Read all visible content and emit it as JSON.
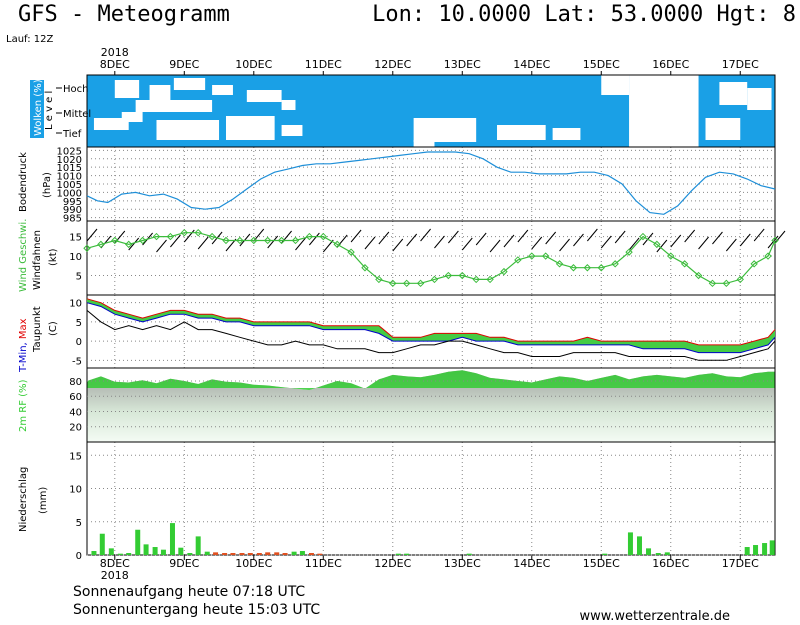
{
  "header": {
    "title": "GFS - Meteogramm",
    "coords": "Lon: 10.0000 Lat: 53.0000 Hgt: 8",
    "run": "Lauf: 12Z"
  },
  "year_top": "2018",
  "year_bottom": "2018",
  "footer": {
    "sunrise": "Sonnenaufgang heute 07:18 UTC",
    "sunset": "Sonnenuntergang heute 15:03 UTC",
    "site": "www.wetterzentrale.de"
  },
  "colors": {
    "cloud_sky": "#1aa0e6",
    "pressure_line": "#1e8fd8",
    "wind_line": "#3cbc3c",
    "tmin_label": "#0000cc",
    "tmax_label": "#e00000",
    "temp_fill": "#44cc44",
    "temp_fill_warm": "#c8e000",
    "rh_fill": "#33cc33",
    "precip_bar": "#33cc33",
    "precip_bar_red": "#e05020"
  },
  "chart_data": {
    "type": "meteogram",
    "x_dates": [
      "8DEC",
      "9DEC",
      "10DEC",
      "11DEC",
      "12DEC",
      "13DEC",
      "14DEC",
      "15DEC",
      "16DEC",
      "17DEC"
    ],
    "x_range_days": [
      7.6,
      17.5
    ],
    "panels": [
      {
        "name": "clouds",
        "ylabel_parts": [
          "Wolken",
          "(%)"
        ],
        "level_label": "Level",
        "levels": [
          "Hoch",
          "Mittel",
          "Tief"
        ]
      },
      {
        "name": "pressure",
        "ylabel": "Bodendruck",
        "unit": "(hPa)",
        "yticks": [
          985,
          990,
          995,
          1000,
          1005,
          1010,
          1015,
          1020,
          1025
        ],
        "ylim": [
          983,
          1027
        ],
        "x": [
          7.6,
          7.75,
          7.9,
          8.1,
          8.3,
          8.5,
          8.7,
          8.9,
          9.1,
          9.3,
          9.5,
          9.7,
          9.9,
          10.1,
          10.3,
          10.5,
          10.7,
          10.9,
          11.1,
          11.3,
          11.5,
          11.7,
          11.9,
          12.1,
          12.3,
          12.5,
          12.7,
          12.9,
          13.1,
          13.3,
          13.5,
          13.7,
          13.9,
          14.1,
          14.3,
          14.5,
          14.7,
          14.9,
          15.1,
          15.3,
          15.5,
          15.7,
          15.9,
          16.1,
          16.3,
          16.5,
          16.7,
          16.9,
          17.1,
          17.3,
          17.5
        ],
        "values": [
          998,
          995,
          994,
          999,
          1000,
          998,
          999,
          996,
          991,
          990,
          991,
          996,
          1002,
          1008,
          1012,
          1014,
          1016,
          1017,
          1017,
          1018,
          1019,
          1020,
          1021,
          1022,
          1023,
          1024,
          1024,
          1024,
          1023,
          1020,
          1015,
          1012,
          1012,
          1011,
          1011,
          1011,
          1012,
          1012,
          1010,
          1005,
          995,
          988,
          987,
          992,
          1001,
          1009,
          1012,
          1011,
          1008,
          1004,
          1002
        ]
      },
      {
        "name": "wind",
        "ylabel_color": "Wind Geschwi.",
        "ylabel": "Windfahnen",
        "unit": "(kt)",
        "yticks": [
          5,
          10,
          15
        ],
        "ylim": [
          0,
          19
        ],
        "x": [
          7.6,
          7.8,
          8.0,
          8.2,
          8.4,
          8.6,
          8.8,
          9.0,
          9.2,
          9.4,
          9.6,
          9.8,
          10.0,
          10.2,
          10.4,
          10.6,
          10.8,
          11.0,
          11.2,
          11.4,
          11.6,
          11.8,
          12.0,
          12.2,
          12.4,
          12.6,
          12.8,
          13.0,
          13.2,
          13.4,
          13.6,
          13.8,
          14.0,
          14.2,
          14.4,
          14.6,
          14.8,
          15.0,
          15.2,
          15.4,
          15.6,
          15.8,
          16.0,
          16.2,
          16.4,
          16.6,
          16.8,
          17.0,
          17.2,
          17.4,
          17.5
        ],
        "values": [
          12,
          13,
          14,
          13,
          14,
          15,
          15,
          16,
          16,
          15,
          14,
          14,
          14,
          14,
          14,
          14,
          15,
          15,
          13,
          11,
          7,
          4,
          3,
          3,
          3,
          4,
          5,
          5,
          4,
          4,
          6,
          9,
          10,
          10,
          8,
          7,
          7,
          7,
          8,
          11,
          15,
          13,
          10,
          8,
          5,
          3,
          3,
          4,
          8,
          10,
          14
        ]
      },
      {
        "name": "temperature",
        "ylabel_parts": [
          "T-Min,",
          "Max"
        ],
        "ylabel": "Taupunkt",
        "unit": "(C)",
        "yticks": [
          -5,
          0,
          5,
          10
        ],
        "ylim": [
          -7,
          12
        ],
        "x": [
          7.6,
          7.8,
          8.0,
          8.2,
          8.4,
          8.6,
          8.8,
          9.0,
          9.2,
          9.4,
          9.6,
          9.8,
          10.0,
          10.2,
          10.4,
          10.6,
          10.8,
          11.0,
          11.2,
          11.4,
          11.6,
          11.8,
          12.0,
          12.2,
          12.4,
          12.6,
          12.8,
          13.0,
          13.2,
          13.4,
          13.6,
          13.8,
          14.0,
          14.2,
          14.4,
          14.6,
          14.8,
          15.0,
          15.2,
          15.4,
          15.6,
          15.8,
          16.0,
          16.2,
          16.4,
          16.6,
          16.8,
          17.0,
          17.2,
          17.4,
          17.5
        ],
        "tmax": [
          11,
          10,
          8,
          7,
          6,
          7,
          8,
          8,
          7,
          7,
          6,
          6,
          5,
          5,
          5,
          5,
          5,
          4,
          4,
          4,
          4,
          4,
          1,
          1,
          1,
          2,
          2,
          2,
          2,
          1,
          1,
          0,
          0,
          0,
          0,
          0,
          1,
          0,
          0,
          0,
          0,
          0,
          0,
          0,
          -1,
          -1,
          -1,
          -1,
          0,
          1,
          3
        ],
        "tmin": [
          10,
          9,
          7,
          6,
          5,
          6,
          7,
          7,
          6,
          6,
          5,
          5,
          4,
          4,
          4,
          4,
          4,
          3,
          3,
          3,
          3,
          2,
          0,
          0,
          0,
          0,
          0,
          1,
          0,
          0,
          0,
          -1,
          -1,
          -1,
          -1,
          -1,
          -1,
          -1,
          -1,
          -1,
          -2,
          -2,
          -2,
          -2,
          -3,
          -3,
          -3,
          -3,
          -2,
          -1,
          1
        ],
        "dewpoint": [
          8,
          5,
          3,
          4,
          3,
          4,
          3,
          5,
          3,
          3,
          2,
          1,
          0,
          -1,
          -1,
          0,
          -1,
          -1,
          -2,
          -2,
          -2,
          -3,
          -3,
          -2,
          -1,
          -1,
          0,
          0,
          -1,
          -2,
          -3,
          -3,
          -4,
          -4,
          -4,
          -3,
          -3,
          -3,
          -3,
          -4,
          -4,
          -4,
          -4,
          -4,
          -5,
          -5,
          -5,
          -4,
          -3,
          -2,
          0
        ]
      },
      {
        "name": "humidity",
        "ylabel": "2m RF (%)",
        "yticks": [
          20,
          40,
          60,
          80
        ],
        "ylim": [
          0,
          97
        ],
        "x": [
          7.6,
          7.8,
          8.0,
          8.2,
          8.4,
          8.6,
          8.8,
          9.0,
          9.2,
          9.4,
          9.6,
          9.8,
          10.0,
          10.2,
          10.4,
          10.6,
          10.8,
          11.0,
          11.2,
          11.4,
          11.6,
          11.8,
          12.0,
          12.2,
          12.4,
          12.6,
          12.8,
          13.0,
          13.2,
          13.4,
          13.6,
          13.8,
          14.0,
          14.2,
          14.4,
          14.6,
          14.8,
          15.0,
          15.2,
          15.4,
          15.6,
          15.8,
          16.0,
          16.2,
          16.4,
          16.6,
          16.8,
          17.0,
          17.2,
          17.4,
          17.5
        ],
        "values": [
          80,
          86,
          79,
          78,
          81,
          77,
          83,
          80,
          76,
          82,
          79,
          78,
          75,
          74,
          72,
          70,
          68,
          74,
          80,
          77,
          70,
          82,
          88,
          86,
          85,
          88,
          92,
          94,
          90,
          84,
          82,
          80,
          78,
          82,
          86,
          84,
          80,
          84,
          88,
          82,
          86,
          88,
          86,
          84,
          88,
          90,
          86,
          85,
          90,
          92,
          92
        ]
      },
      {
        "name": "precipitation",
        "ylabel": "Niederschlag",
        "unit": "(mm)",
        "yticks": [
          0,
          5,
          10,
          15
        ],
        "ylim": [
          0,
          17
        ],
        "x": [
          7.7,
          7.82,
          7.95,
          8.08,
          8.2,
          8.33,
          8.45,
          8.58,
          8.7,
          8.83,
          8.95,
          9.08,
          9.2,
          9.33,
          9.45,
          9.58,
          9.7,
          9.83,
          9.95,
          10.08,
          10.2,
          10.33,
          10.45,
          10.58,
          10.7,
          10.83,
          10.95,
          12.08,
          12.2,
          13.1,
          15.05,
          15.42,
          15.55,
          15.68,
          15.82,
          15.95,
          17.1,
          17.22,
          17.35,
          17.46
        ],
        "values": [
          0.6,
          3.2,
          1.0,
          0.2,
          0.3,
          3.8,
          1.6,
          1.2,
          0.8,
          4.8,
          1.1,
          0.3,
          2.8,
          0.5,
          0.4,
          0.3,
          0.3,
          0.3,
          0.3,
          0.3,
          0.4,
          0.4,
          0.3,
          0.5,
          0.6,
          0.3,
          0.2,
          0.2,
          0.2,
          0.2,
          0.2,
          3.4,
          2.8,
          1.0,
          0.3,
          0.4,
          1.2,
          1.5,
          1.8,
          2.2
        ]
      }
    ]
  }
}
